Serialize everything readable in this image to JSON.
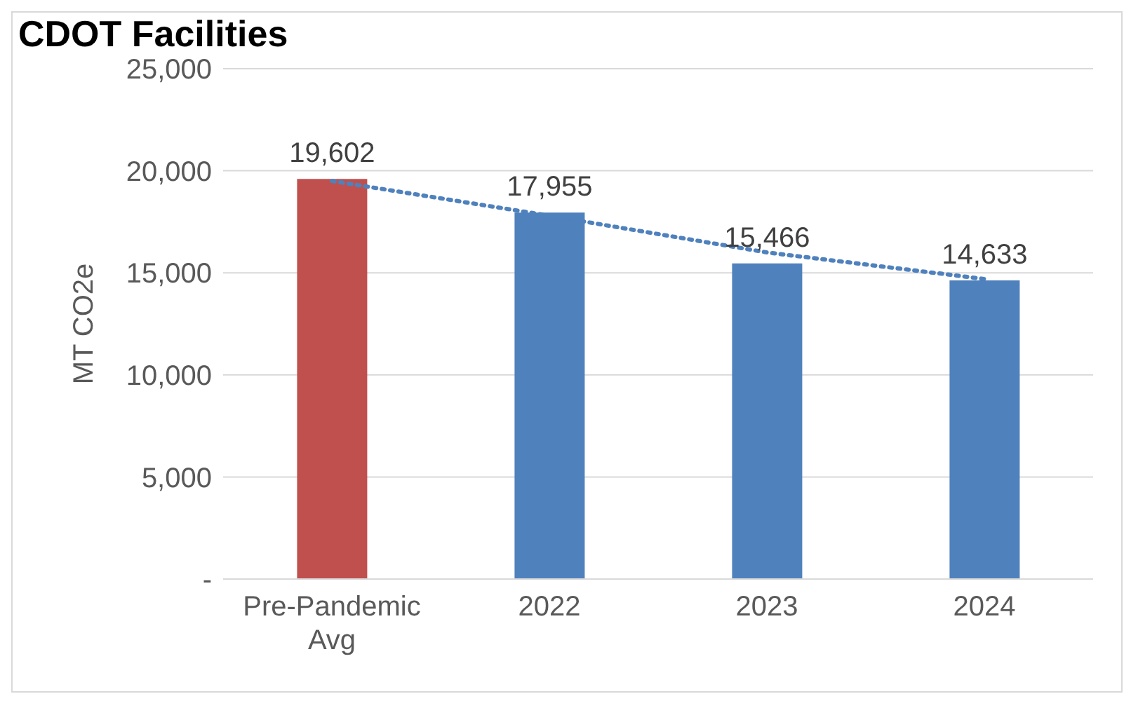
{
  "chart_data": {
    "type": "bar",
    "title": "CDOT Facilities",
    "ylabel": "MT CO2e",
    "categories": [
      "Pre-Pandemic Avg",
      "2022",
      "2023",
      "2024"
    ],
    "series": [
      {
        "colors": [
          "#c0504d",
          "#4f81bd",
          "#4f81bd",
          "#4f81bd"
        ],
        "values": [
          19602,
          17955,
          15466,
          14633
        ],
        "value_labels": [
          "19,602",
          "17,955",
          "15,466",
          "14,633"
        ]
      },
      {
        "type": "line",
        "color": "#4f81bd",
        "line_style": "dotted",
        "values": [
          19500,
          17800,
          16000,
          14700
        ]
      }
    ],
    "ylim": [
      0,
      25000
    ],
    "yticks": [
      {
        "value": 0,
        "label": "-"
      },
      {
        "value": 5000,
        "label": "5,000"
      },
      {
        "value": 10000,
        "label": "10,000"
      },
      {
        "value": 15000,
        "label": "15,000"
      },
      {
        "value": 20000,
        "label": "20,000"
      },
      {
        "value": 25000,
        "label": "25,000"
      }
    ],
    "grid": "y"
  }
}
